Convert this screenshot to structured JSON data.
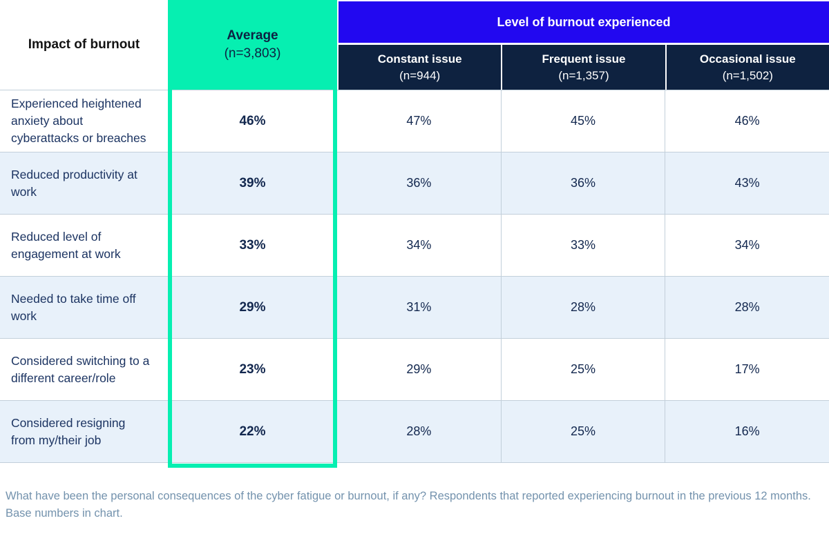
{
  "colors": {
    "green": "#06efb1",
    "blue": "#2208f0",
    "navy": "#0e2240",
    "row_alt_blue": "#e8f1fa",
    "grid_line": "#c2cfda",
    "label_navy": "#1c3462",
    "footnote_gray_blue": "#7392ad"
  },
  "table": {
    "row_header_label": "Impact of burnout",
    "average_column": {
      "title": "Average",
      "n": "(n=3,803)"
    },
    "group_header": "Level of burnout experienced",
    "columns": [
      {
        "title": "Constant issue",
        "n": "(n=944)"
      },
      {
        "title": "Frequent issue",
        "n": "(n=1,357)"
      },
      {
        "title": "Occasional issue",
        "n": "(n=1,502)"
      }
    ],
    "rows": [
      {
        "label": "Experienced heightened anxiety about cyberattacks or breaches",
        "average": "46%",
        "values": [
          "47%",
          "45%",
          "46%"
        ]
      },
      {
        "label": "Reduced productivity at work",
        "average": "39%",
        "values": [
          "36%",
          "36%",
          "43%"
        ]
      },
      {
        "label": "Reduced level of engagement at work",
        "average": "33%",
        "values": [
          "34%",
          "33%",
          "34%"
        ]
      },
      {
        "label": "Needed to take time off work",
        "average": "29%",
        "values": [
          "31%",
          "28%",
          "28%"
        ]
      },
      {
        "label": "Considered switching to a different career/role",
        "average": "23%",
        "values": [
          "29%",
          "25%",
          "17%"
        ]
      },
      {
        "label": "Considered resigning from my/their job",
        "average": "22%",
        "values": [
          "28%",
          "25%",
          "16%"
        ]
      }
    ]
  },
  "footnote": "What have been the personal consequences of the cyber fatigue or burnout, if any? Respondents that reported experiencing burnout in the previous 12 months. Base numbers in chart.",
  "chart_data": {
    "type": "table",
    "title": "Impact of burnout",
    "group_header": "Level of burnout experienced",
    "columns": [
      "Average (n=3,803)",
      "Constant issue (n=944)",
      "Frequent issue (n=1,357)",
      "Occasional issue (n=1,502)"
    ],
    "categories": [
      "Experienced heightened anxiety about cyberattacks or breaches",
      "Reduced productivity at work",
      "Reduced level of engagement at work",
      "Needed to take time off work",
      "Considered switching to a different career/role",
      "Considered resigning from my/their job"
    ],
    "series": [
      {
        "name": "Average (n=3,803)",
        "values": [
          46,
          39,
          33,
          29,
          23,
          22
        ]
      },
      {
        "name": "Constant issue (n=944)",
        "values": [
          47,
          36,
          34,
          31,
          29,
          28
        ]
      },
      {
        "name": "Frequent issue (n=1,357)",
        "values": [
          45,
          36,
          33,
          28,
          25,
          25
        ]
      },
      {
        "name": "Occasional issue (n=1,502)",
        "values": [
          46,
          43,
          34,
          28,
          17,
          16
        ]
      }
    ],
    "unit": "%",
    "footnote": "What have been the personal consequences of the cyber fatigue or burnout, if any? Respondents that reported experiencing burnout in the previous 12 months. Base numbers in chart."
  }
}
